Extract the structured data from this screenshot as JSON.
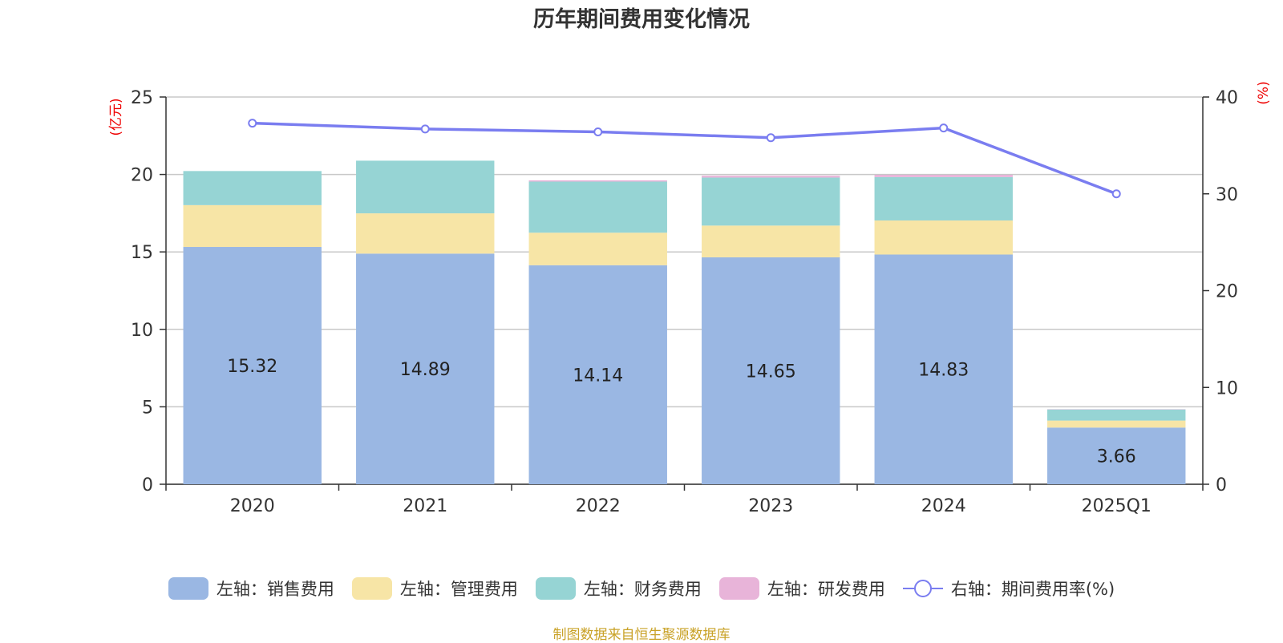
{
  "chart_data": {
    "type": "bar",
    "title": "历年期间费用变化情况",
    "categories": [
      "2020",
      "2021",
      "2022",
      "2023",
      "2024",
      "2025Q1"
    ],
    "y_left": {
      "unit": "(亿元)",
      "ylim": [
        0,
        25
      ],
      "ticks": [
        "0",
        "5",
        "10",
        "15",
        "20",
        "25"
      ]
    },
    "y_right": {
      "unit": "(%)",
      "ylim": [
        0,
        40
      ],
      "ticks": [
        "0",
        "10",
        "20",
        "30",
        "40"
      ]
    },
    "series": [
      {
        "name": "左轴：销售费用",
        "axis": "left",
        "type": "bar",
        "stacked": true,
        "color": "#9ab7e3",
        "values": [
          15.32,
          14.89,
          14.14,
          14.65,
          14.83,
          3.66
        ],
        "labels": [
          "15.32",
          "14.89",
          "14.14",
          "14.65",
          "14.83",
          "3.66"
        ]
      },
      {
        "name": "左轴：管理费用",
        "axis": "left",
        "type": "bar",
        "stacked": true,
        "color": "#f7e5a6",
        "values": [
          2.7,
          2.6,
          2.1,
          2.05,
          2.2,
          0.45
        ]
      },
      {
        "name": "左轴：财务费用",
        "axis": "left",
        "type": "bar",
        "stacked": true,
        "color": "#96d4d4",
        "values": [
          2.2,
          3.4,
          3.3,
          3.1,
          2.8,
          0.72
        ]
      },
      {
        "name": "左轴：研发费用",
        "axis": "left",
        "type": "bar",
        "stacked": true,
        "color": "#e8b4d9",
        "values": [
          0.0,
          0.0,
          0.08,
          0.12,
          0.15,
          0.02
        ]
      },
      {
        "name": "右轴：期间费用率(%)",
        "axis": "right",
        "type": "line",
        "color": "#7a7df0",
        "values": [
          37.3,
          36.7,
          36.4,
          35.8,
          36.8,
          30.0
        ]
      }
    ],
    "grid": true,
    "legend": "bottom"
  },
  "source_note": "制图数据来自恒生聚源数据库"
}
